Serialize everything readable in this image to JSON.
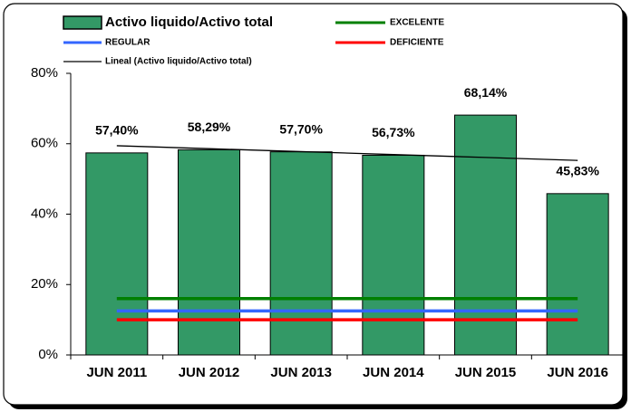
{
  "chart_data": {
    "type": "bar",
    "categories": [
      "JUN 2011",
      "JUN 2012",
      "JUN 2013",
      "JUN 2014",
      "JUN 2015",
      "JUN 2016"
    ],
    "ylim": [
      0,
      80
    ],
    "yticks": [
      {
        "value": 0,
        "label": "0%"
      },
      {
        "value": 20,
        "label": "20%"
      },
      {
        "value": 40,
        "label": "40%"
      },
      {
        "value": 60,
        "label": "60%"
      },
      {
        "value": 80,
        "label": "80%"
      }
    ],
    "series": [
      {
        "name": "Activo liquido/Activo total",
        "style": "bar",
        "color": "#339966",
        "values": [
          57.4,
          58.29,
          57.7,
          56.73,
          68.14,
          45.83
        ],
        "value_labels": [
          "57,40%",
          "58,29%",
          "57,70%",
          "56,73%",
          "68,14%",
          "45,83%"
        ]
      },
      {
        "name": "EXCELENTE",
        "style": "line",
        "color": "#008000",
        "values": [
          16,
          16,
          16,
          16,
          16,
          16
        ]
      },
      {
        "name": "REGULAR",
        "style": "line",
        "color": "#3366ff",
        "values": [
          12.5,
          12.5,
          12.5,
          12.5,
          12.5,
          12.5
        ]
      },
      {
        "name": "DEFICIENTE",
        "style": "line",
        "color": "#ff0000",
        "values": [
          10,
          10,
          10,
          10,
          10,
          10
        ]
      },
      {
        "name": "Lineal (Activo liquido/Activo total)",
        "style": "trend",
        "color": "#000000",
        "values": [
          59.44,
          58.6,
          57.77,
          56.93,
          56.1,
          55.26
        ]
      }
    ]
  }
}
